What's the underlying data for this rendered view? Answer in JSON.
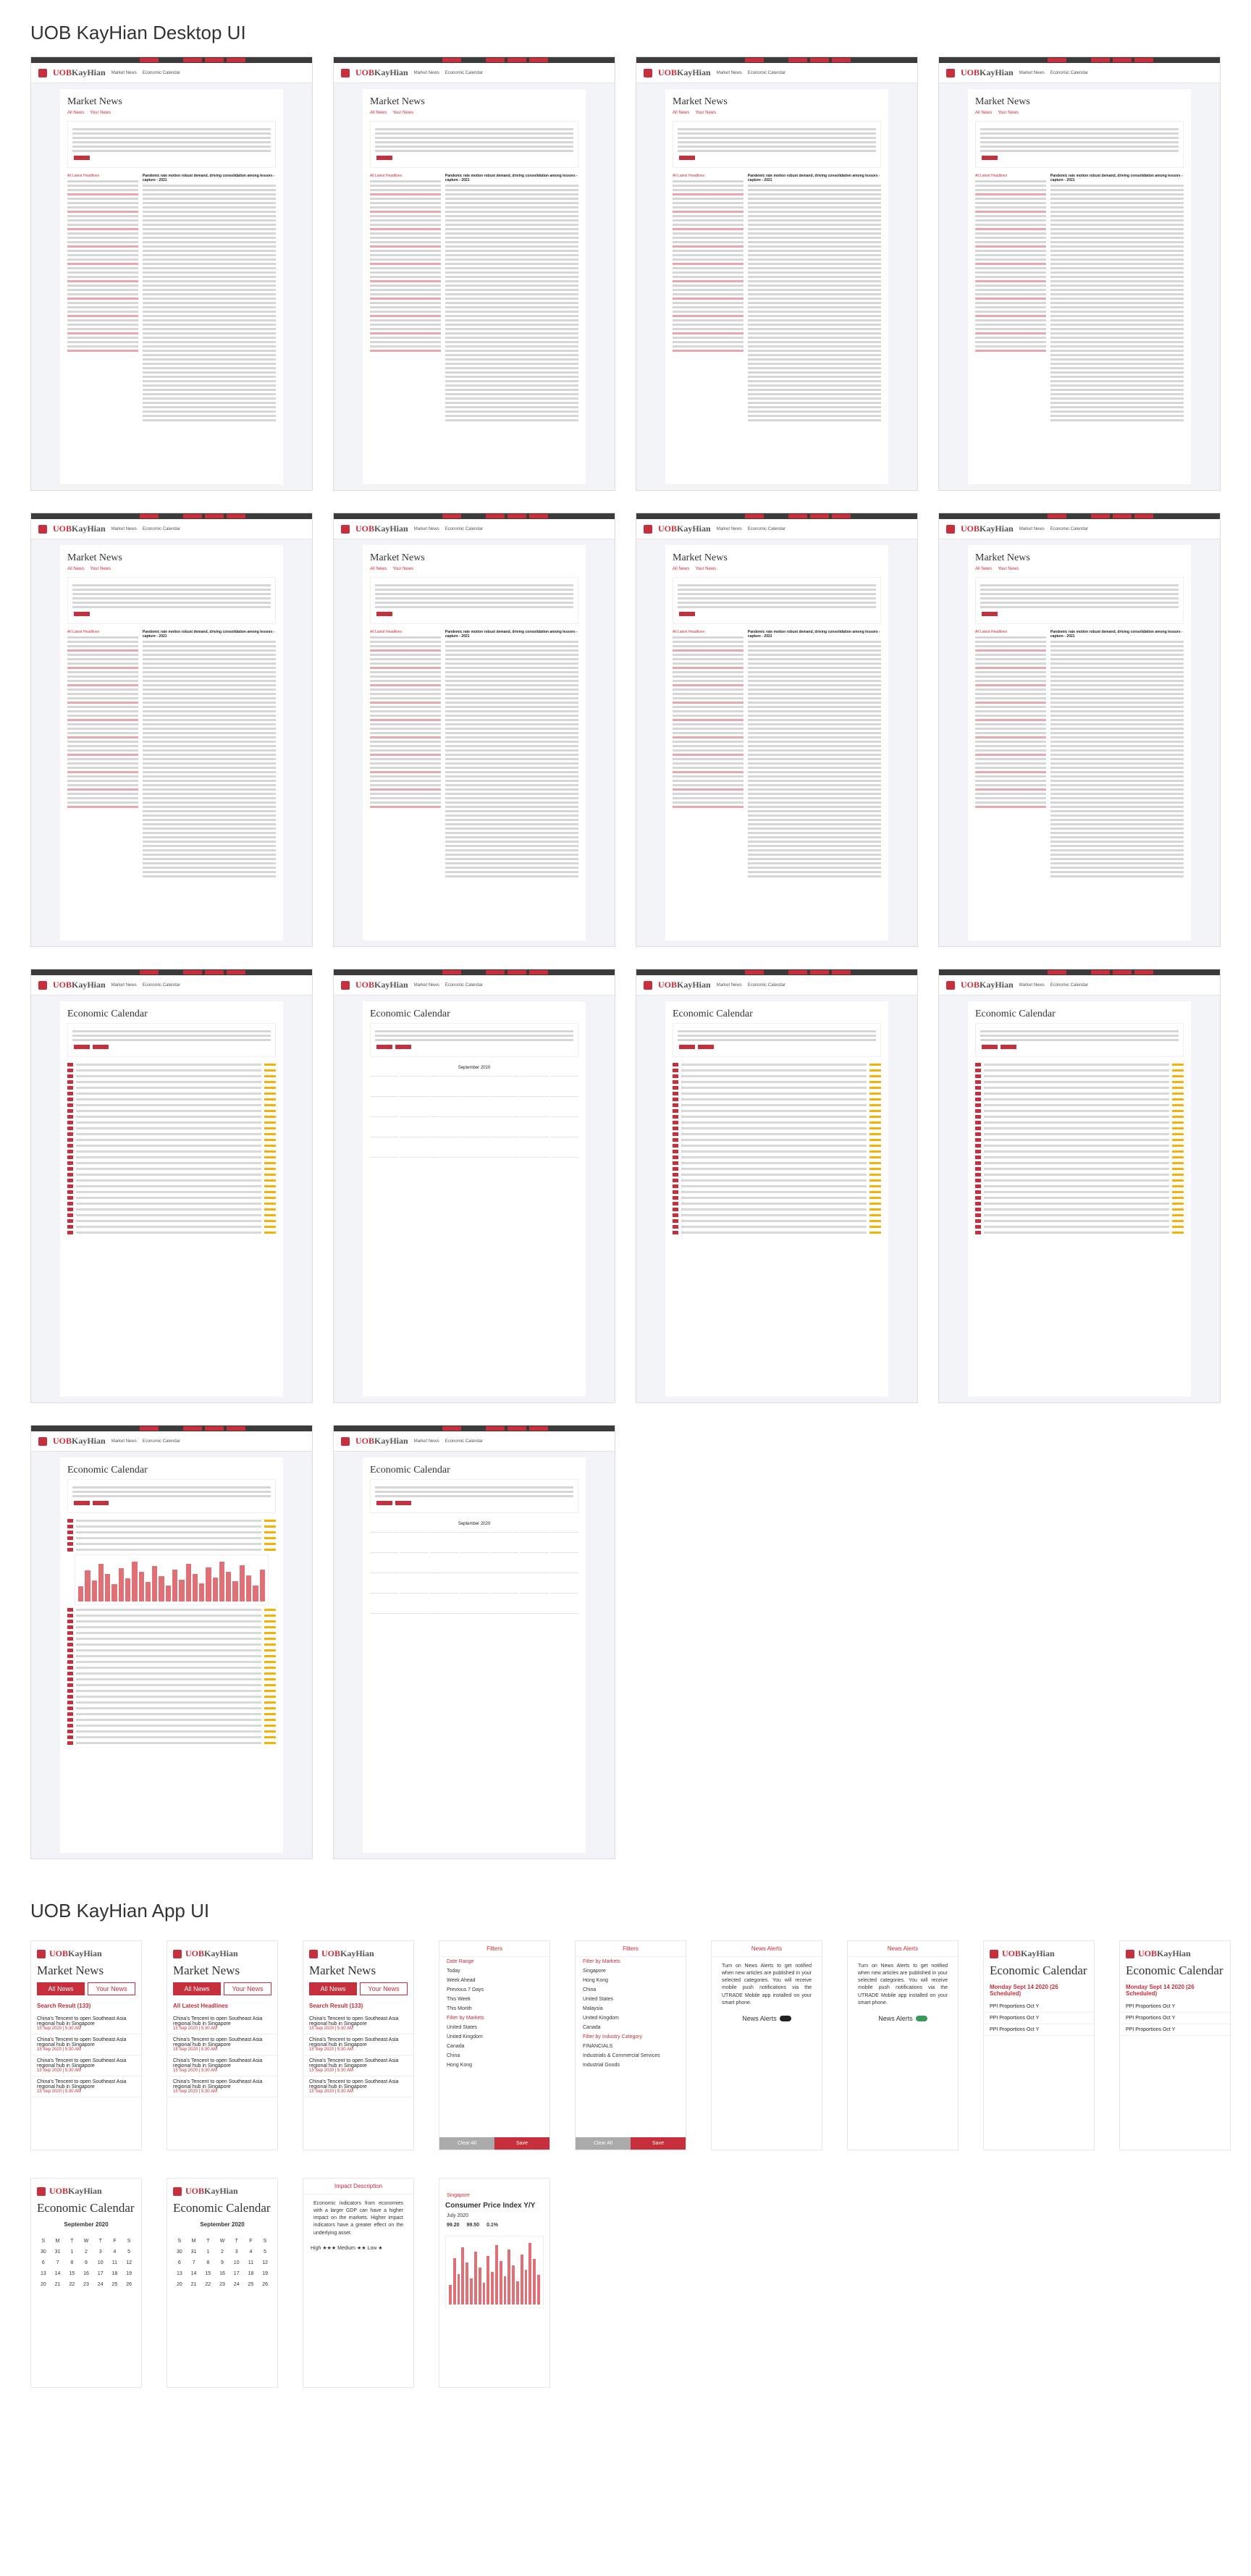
{
  "sections": {
    "desktop_title": "UOB KayHian Desktop UI",
    "app_title": "UOB KayHian App UI"
  },
  "brand": {
    "name": "UOB",
    "name2": "KayHian",
    "accent": "#c62f3b"
  },
  "desktop": {
    "nav": [
      "Market News",
      "Economic Calendar"
    ],
    "market_news_title": "Market News",
    "economic_calendar_title": "Economic Calendar",
    "tabs": [
      "All News",
      "Your News"
    ],
    "headline": "Pandemic rate motion robust demand, driving consolidation among lessors - capture - 2021",
    "all_latest": "All Latest Headlines",
    "calendar_month": "September 2020"
  },
  "app": {
    "market_news_title": "Market News",
    "economic_calendar_title": "Economic Calendar",
    "tab_all": "All News",
    "tab_yours": "Your News",
    "search_results": "Search Result (133)",
    "all_latest": "All Latest Headlines",
    "news_items": [
      {
        "title": "China's Tencent to open Southeast Asia regional hub in Singapore",
        "date": "15 Sep 2020 | 5:30 AM"
      },
      {
        "title": "China's Tencent to open Southeast Asia regional hub in Singapore",
        "date": "15 Sep 2020 | 5:30 AM"
      },
      {
        "title": "China's Tencent to open Southeast Asia regional hub in Singapore",
        "date": "15 Sep 2020 | 5:30 AM"
      },
      {
        "title": "China's Tencent to open Southeast Asia regional hub in Singapore",
        "date": "15 Sep 2020 | 5:30 AM"
      }
    ],
    "filters": {
      "title": "Filters",
      "clear": "Clear",
      "date_range_label": "Date Range",
      "date_range": [
        "Today",
        "Week Ahead",
        "Previous 7 Days",
        "This Week",
        "This Month"
      ],
      "by_markets_label": "Filter by Markets",
      "markets": [
        "United States",
        "United Kingdom",
        "Canada",
        "China",
        "Hong Kong"
      ],
      "markets_list": [
        "Singapore",
        "Hong Kong",
        "China",
        "United States",
        "Malaysia",
        "United Kingdom",
        "Canada"
      ],
      "industry_label": "Filter by Industry Category",
      "industry": [
        "FINANCIALS",
        "Industrials & Commercial Services",
        "Industrial Goods"
      ],
      "clear_all": "Clear All",
      "save": "Save"
    },
    "alerts": {
      "title": "News Alerts",
      "text": "Turn on News Alerts to get notified when new articles are published in your selected categories. You will receive mobile push notifications via the UTRADE Mobile app installed on your smart phone.",
      "toggle_label": "News Alerts"
    },
    "calendar": {
      "day1": "Monday Sept 14 2020 (26 Scheduled)",
      "event": "PPI Proportions Oct Y",
      "month": "September 2020",
      "weekdays": [
        "S",
        "M",
        "T",
        "W",
        "T",
        "F",
        "S"
      ],
      "days": [
        "30",
        "31",
        "1",
        "2",
        "3",
        "4",
        "5",
        "6",
        "7",
        "8",
        "9",
        "10",
        "11",
        "12",
        "13",
        "14",
        "15",
        "16",
        "17",
        "18",
        "19",
        "20",
        "21",
        "22",
        "23",
        "24",
        "25",
        "26"
      ]
    },
    "impact": {
      "title": "Impact Description",
      "text": "Economic indicators from economies with a larger GDP can have a higher impact on the markets. Higher impact indicators have a greater effect on the underlying asset.",
      "legend": "High ★★★  Medium ★★  Low ★"
    },
    "cpi": {
      "country": "Singapore",
      "title": "Consumer Price Index Y/Y",
      "month": "July 2020",
      "actual": "99.20",
      "forecast": "99.50",
      "previous": "0.1%"
    }
  }
}
